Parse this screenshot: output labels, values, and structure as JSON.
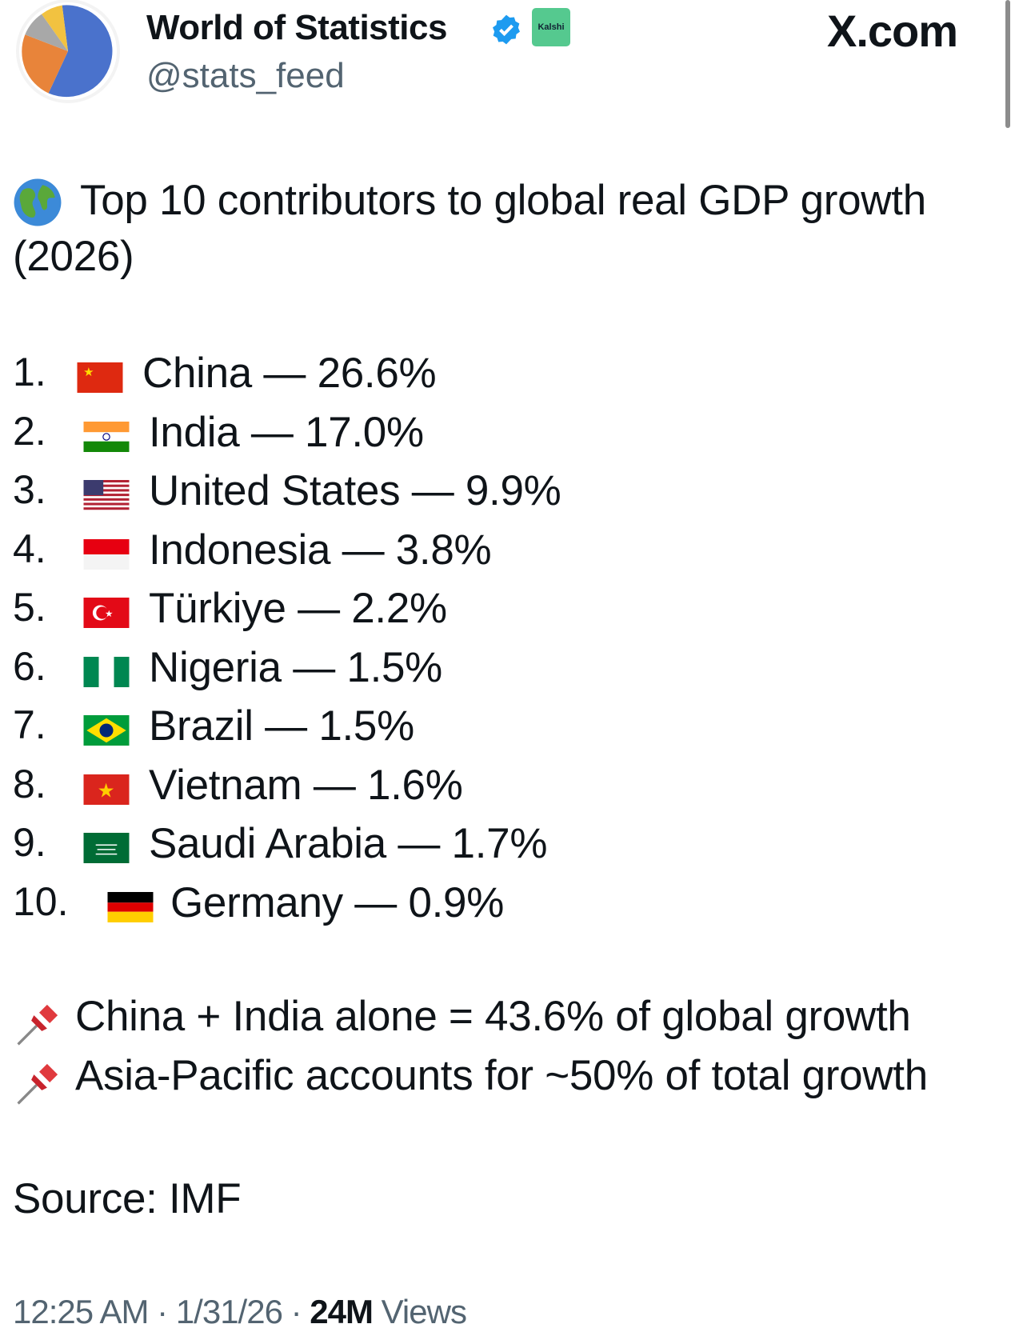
{
  "header": {
    "display_name": "World of Statistics",
    "handle": "@stats_feed",
    "affiliate_badge": "Kalshi",
    "verified_icon": "verified-badge-icon",
    "site": "X.com",
    "avatar_colors": [
      "#4a72cc",
      "#e8843a",
      "#a8a8a8",
      "#f2c240"
    ]
  },
  "post": {
    "title_line1": "Top 10 contributors to global real GDP growth",
    "title_line2": "(2026)",
    "list": [
      {
        "rank": "1.",
        "country": "China",
        "value": "26.6%",
        "flag": "cn"
      },
      {
        "rank": "2.",
        "country": "India",
        "value": "17.0%",
        "flag": "in"
      },
      {
        "rank": "3.",
        "country": "United States",
        "value": "9.9%",
        "flag": "us"
      },
      {
        "rank": "4.",
        "country": "Indonesia",
        "value": "3.8%",
        "flag": "id"
      },
      {
        "rank": "5.",
        "country": "Türkiye",
        "value": "2.2%",
        "flag": "tr"
      },
      {
        "rank": "6.",
        "country": "Nigeria",
        "value": "1.5%",
        "flag": "ng"
      },
      {
        "rank": "7.",
        "country": "Brazil",
        "value": "1.5%",
        "flag": "br"
      },
      {
        "rank": "8.",
        "country": "Vietnam",
        "value": "1.6%",
        "flag": "vn"
      },
      {
        "rank": "9.",
        "country": "Saudi Arabia",
        "value": "1.7%",
        "flag": "sa"
      },
      {
        "rank": "10.",
        "country": "Germany",
        "value": "0.9%",
        "flag": "de"
      }
    ],
    "separator": "—",
    "note1": "China + India alone = 43.6% of global growth",
    "note2": "Asia-Pacific accounts for ~50% of total growth",
    "source": "Source: IMF"
  },
  "footer": {
    "time": "12:25 AM",
    "date": "1/31/26",
    "dot": "·",
    "views_count": "24M",
    "views_label": "Views"
  }
}
